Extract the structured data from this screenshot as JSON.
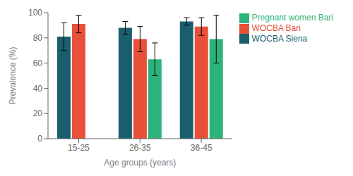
{
  "chart_data": {
    "type": "bar",
    "categories": [
      "15-25",
      "26-35",
      "36-45"
    ],
    "series": [
      {
        "name": "WOCBA Siena",
        "color": "#1a5f6e",
        "values": [
          81,
          88,
          93
        ],
        "errors": [
          11,
          5,
          3
        ]
      },
      {
        "name": "WOCBA Bari",
        "color": "#e8503a",
        "values": [
          91,
          79,
          89
        ],
        "errors": [
          7,
          10,
          7
        ]
      },
      {
        "name": "Pregnant women Bari",
        "color": "#2db37a",
        "values": [
          null,
          63,
          79
        ],
        "errors": [
          null,
          13,
          19
        ]
      }
    ],
    "xlabel": "Age groups (years)",
    "ylabel": "Prevalence (%)",
    "ylim": [
      0,
      100
    ],
    "yticks": [
      0,
      20,
      40,
      60,
      80,
      100
    ],
    "grid": false,
    "legend": "right"
  }
}
